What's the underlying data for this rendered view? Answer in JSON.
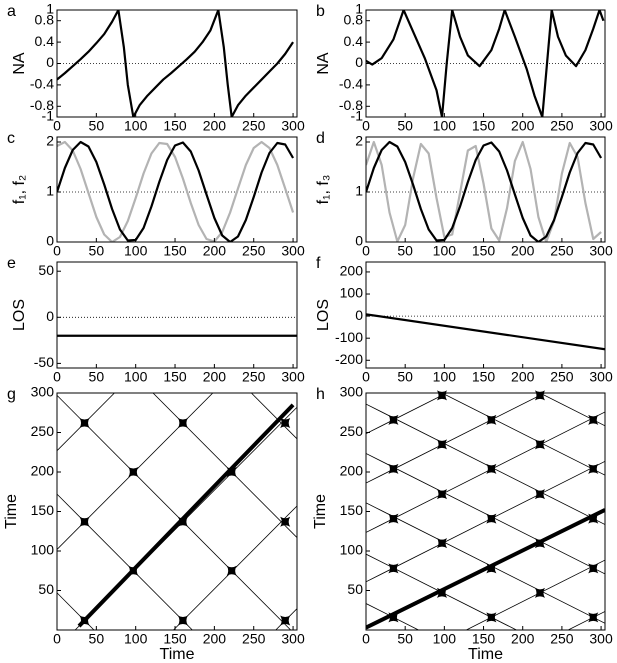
{
  "chart_data": [
    {
      "type": "line",
      "label": "a",
      "ylabel": "NA",
      "xlim": [
        0,
        305
      ],
      "ylim": [
        -1,
        1
      ],
      "xticks": [
        0,
        50,
        100,
        150,
        200,
        250,
        300
      ],
      "yticks": [
        -1,
        -0.8,
        -0.4,
        0,
        0.4,
        0.8,
        1
      ],
      "hline": 0,
      "x": [
        0,
        10,
        20,
        30,
        40,
        50,
        60,
        70,
        78,
        85,
        90,
        97,
        105,
        115,
        125,
        135,
        145,
        155,
        165,
        175,
        185,
        195,
        205,
        212,
        217,
        222,
        230,
        240,
        250,
        260,
        270,
        280,
        290,
        300
      ],
      "series": [
        {
          "color": "#000000",
          "values": [
            -0.3,
            -0.18,
            -0.05,
            0.08,
            0.22,
            0.38,
            0.55,
            0.78,
            1,
            0.3,
            -0.4,
            -1,
            -0.78,
            -0.6,
            -0.45,
            -0.3,
            -0.18,
            -0.05,
            0.08,
            0.22,
            0.4,
            0.62,
            1,
            0.3,
            -0.4,
            -1,
            -0.78,
            -0.6,
            -0.45,
            -0.3,
            -0.15,
            0,
            0.18,
            0.4
          ]
        }
      ]
    },
    {
      "type": "line",
      "label": "b",
      "ylabel": "NA",
      "xlim": [
        0,
        305
      ],
      "ylim": [
        -1,
        1
      ],
      "xticks": [
        0,
        50,
        100,
        150,
        200,
        250,
        300
      ],
      "yticks": [
        -1,
        -0.8,
        -0.4,
        0,
        0.4,
        0.8,
        1
      ],
      "hline": 0,
      "x": [
        0,
        8,
        20,
        35,
        48,
        60,
        75,
        90,
        97,
        103,
        110,
        120,
        130,
        145,
        160,
        170,
        177,
        190,
        205,
        215,
        225,
        231,
        237,
        245,
        255,
        268,
        280,
        290,
        298,
        303
      ],
      "series": [
        {
          "color": "#000000",
          "values": [
            0.05,
            -0.02,
            0.1,
            0.45,
            1,
            0.6,
            0.1,
            -0.5,
            -1,
            0,
            1,
            0.5,
            0.15,
            -0.05,
            0.25,
            0.65,
            1,
            0.5,
            -0.1,
            -0.6,
            -1,
            0,
            1,
            0.5,
            0.15,
            -0.05,
            0.25,
            0.65,
            1,
            0.8
          ]
        }
      ]
    },
    {
      "type": "line",
      "label": "c",
      "ylabel": "f₁, f₂",
      "xlim": [
        0,
        305
      ],
      "ylim": [
        0,
        2.1
      ],
      "xticks": [
        0,
        50,
        100,
        150,
        200,
        250,
        300
      ],
      "yticks": [
        0,
        1,
        2
      ],
      "hline": 1,
      "x": [
        0,
        10,
        20,
        30,
        40,
        50,
        60,
        70,
        80,
        90,
        100,
        110,
        120,
        130,
        140,
        150,
        160,
        170,
        180,
        190,
        200,
        210,
        220,
        230,
        240,
        250,
        260,
        270,
        280,
        290,
        300
      ],
      "series": [
        {
          "color": "#b3b3b3",
          "values": [
            1.92,
            2.0,
            1.83,
            1.46,
            0.98,
            0.5,
            0.15,
            0.0,
            0.1,
            0.42,
            0.88,
            1.37,
            1.77,
            1.98,
            1.96,
            1.7,
            1.27,
            0.78,
            0.34,
            0.06,
            0.01,
            0.2,
            0.59,
            1.07,
            1.54,
            1.88,
            2.0,
            1.88,
            1.54,
            1.07,
            0.59
          ]
        },
        {
          "color": "#000000",
          "values": [
            1.0,
            1.48,
            1.84,
            2.0,
            1.91,
            1.6,
            1.15,
            0.66,
            0.25,
            0.03,
            0.04,
            0.28,
            0.71,
            1.2,
            1.64,
            1.93,
            1.99,
            1.81,
            1.43,
            0.95,
            0.48,
            0.13,
            0.0,
            0.11,
            0.44,
            0.9,
            1.39,
            1.78,
            1.98,
            1.95,
            1.68
          ]
        }
      ]
    },
    {
      "type": "line",
      "label": "d",
      "ylabel": "f₁, f₃",
      "xlim": [
        0,
        305
      ],
      "ylim": [
        0,
        2.1
      ],
      "xticks": [
        0,
        50,
        100,
        150,
        200,
        250,
        300
      ],
      "yticks": [
        0,
        1,
        2
      ],
      "hline": 1,
      "x": [
        0,
        10,
        20,
        30,
        40,
        50,
        60,
        70,
        80,
        90,
        100,
        110,
        120,
        130,
        140,
        150,
        160,
        170,
        180,
        190,
        200,
        210,
        220,
        230,
        240,
        250,
        260,
        270,
        280,
        290,
        300
      ],
      "series": [
        {
          "color": "#b3b3b3",
          "values": [
            1.54,
            2.0,
            1.54,
            0.59,
            0.01,
            0.34,
            1.27,
            1.96,
            1.77,
            0.88,
            0.1,
            0.15,
            0.98,
            1.83,
            1.92,
            1.17,
            0.27,
            0.03,
            0.68,
            1.62,
            2.0,
            1.46,
            0.5,
            0.0,
            0.42,
            1.37,
            1.98,
            1.7,
            0.78,
            0.06,
            0.2
          ]
        },
        {
          "color": "#000000",
          "values": [
            1.0,
            1.48,
            1.84,
            2.0,
            1.91,
            1.6,
            1.15,
            0.66,
            0.25,
            0.03,
            0.04,
            0.28,
            0.71,
            1.2,
            1.64,
            1.93,
            1.99,
            1.81,
            1.43,
            0.95,
            0.48,
            0.13,
            0.0,
            0.11,
            0.44,
            0.9,
            1.39,
            1.78,
            1.98,
            1.95,
            1.68
          ]
        }
      ]
    },
    {
      "type": "line",
      "label": "e",
      "ylabel": "LOS",
      "xlim": [
        0,
        305
      ],
      "ylim": [
        -55,
        60
      ],
      "xticks": [
        0,
        50,
        100,
        150,
        200,
        250,
        300
      ],
      "yticks": [
        -50,
        0,
        50
      ],
      "hline": 0,
      "x": [
        0,
        305
      ],
      "series": [
        {
          "color": "#000000",
          "values": [
            -20,
            -20
          ]
        }
      ]
    },
    {
      "type": "line",
      "label": "f",
      "ylabel": "LOS",
      "xlim": [
        0,
        305
      ],
      "ylim": [
        -235,
        245
      ],
      "xticks": [
        0,
        50,
        100,
        150,
        200,
        250,
        300
      ],
      "yticks": [
        -200,
        -100,
        0,
        100,
        200
      ],
      "hline": 0,
      "x": [
        0,
        305
      ],
      "series": [
        {
          "color": "#000000",
          "values": [
            8,
            -150
          ]
        }
      ]
    },
    {
      "type": "trajectory",
      "label": "g",
      "xlabel": "Time",
      "ylabel": "Time",
      "xlim": [
        0,
        305
      ],
      "ylim": [
        0,
        300
      ],
      "xticks": [
        0,
        50,
        100,
        150,
        200,
        250,
        300
      ],
      "yticks": [
        50,
        100,
        150,
        200,
        250,
        300
      ],
      "series": [
        {
          "color": "#000000",
          "width": 0.8,
          "x": [
            0,
            73
          ],
          "values": [
            227,
            300
          ]
        },
        {
          "color": "#000000",
          "width": 0.8,
          "x": [
            0,
            198
          ],
          "values": [
            102,
            300
          ]
        },
        {
          "color": "#000000",
          "width": 0.8,
          "x": [
            23,
            305
          ],
          "values": [
            0,
            282
          ]
        },
        {
          "color": "#000000",
          "width": 0.8,
          "x": [
            148,
            305
          ],
          "values": [
            0,
            157
          ]
        },
        {
          "color": "#000000",
          "width": 0.8,
          "x": [
            278,
            305
          ],
          "values": [
            0,
            27
          ]
        },
        {
          "color": "#000000",
          "width": 0.8,
          "x": [
            0,
            47
          ],
          "values": [
            47,
            0
          ]
        },
        {
          "color": "#000000",
          "width": 0.8,
          "x": [
            0,
            172
          ],
          "values": [
            172,
            0
          ]
        },
        {
          "color": "#000000",
          "width": 0.8,
          "x": [
            0,
            297
          ],
          "values": [
            297,
            0
          ]
        },
        {
          "color": "#000000",
          "width": 0.8,
          "x": [
            122,
            305
          ],
          "values": [
            300,
            117
          ]
        },
        {
          "color": "#000000",
          "width": 0.8,
          "x": [
            247,
            305
          ],
          "values": [
            300,
            242
          ]
        },
        {
          "color": "#000000",
          "width": 4,
          "x": [
            28,
            300
          ],
          "values": [
            5,
            285
          ]
        }
      ],
      "points": {
        "x": [
          35,
          160,
          290,
          97,
          222,
          35,
          160,
          290,
          97,
          222,
          35,
          160,
          290
        ],
        "y": [
          12,
          12,
          12,
          75,
          75,
          137,
          137,
          137,
          200,
          200,
          262,
          262,
          262
        ]
      }
    },
    {
      "type": "trajectory",
      "label": "h",
      "xlabel": "Time",
      "ylabel": "Time",
      "xlim": [
        0,
        305
      ],
      "ylim": [
        0,
        300
      ],
      "xticks": [
        0,
        50,
        100,
        150,
        200,
        250,
        300
      ],
      "yticks": [
        50,
        100,
        150,
        200,
        250,
        300
      ],
      "series": [
        {
          "color": "#000000",
          "width": 0.8,
          "x": [
            0,
            103
          ],
          "values": [
            248.5,
            300
          ]
        },
        {
          "color": "#000000",
          "width": 0.8,
          "x": [
            0,
            228
          ],
          "values": [
            186,
            300
          ]
        },
        {
          "color": "#000000",
          "width": 0.8,
          "x": [
            0,
            305
          ],
          "values": [
            123.5,
            276
          ]
        },
        {
          "color": "#000000",
          "width": 0.8,
          "x": [
            0,
            305
          ],
          "values": [
            61,
            213.5
          ]
        },
        {
          "color": "#000000",
          "width": 0.8,
          "x": [
            128,
            305
          ],
          "values": [
            0,
            88.5
          ]
        },
        {
          "color": "#000000",
          "width": 0.8,
          "x": [
            258,
            305
          ],
          "values": [
            0,
            23.5
          ]
        },
        {
          "color": "#000000",
          "width": 0.8,
          "x": [
            0,
            67
          ],
          "values": [
            33.5,
            0
          ]
        },
        {
          "color": "#000000",
          "width": 0.8,
          "x": [
            0,
            192
          ],
          "values": [
            96,
            0
          ]
        },
        {
          "color": "#000000",
          "width": 0.8,
          "x": [
            0,
            305
          ],
          "values": [
            161,
            8.5
          ]
        },
        {
          "color": "#000000",
          "width": 0.8,
          "x": [
            0,
            305
          ],
          "values": [
            223.5,
            71
          ]
        },
        {
          "color": "#000000",
          "width": 0.8,
          "x": [
            0,
            305
          ],
          "values": [
            286,
            133.5
          ]
        },
        {
          "color": "#000000",
          "width": 0.8,
          "x": [
            97,
            305
          ],
          "values": [
            300,
            196
          ]
        },
        {
          "color": "#000000",
          "width": 0.8,
          "x": [
            222,
            305
          ],
          "values": [
            300,
            258.5
          ]
        },
        {
          "color": "#000000",
          "width": 4,
          "x": [
            0,
            305
          ],
          "values": [
            3,
            152
          ]
        }
      ],
      "points": {
        "x": [
          35,
          160,
          290,
          97,
          222,
          35,
          160,
          290,
          97,
          222,
          35,
          160,
          290,
          97,
          222,
          35,
          160,
          290,
          97,
          222,
          35,
          160,
          290,
          97,
          222
        ],
        "y": [
          16,
          16,
          16,
          47,
          47,
          78,
          78,
          78,
          110,
          110,
          141,
          141,
          141,
          172,
          172,
          204,
          204,
          204,
          235,
          235,
          266,
          266,
          266,
          297,
          297
        ]
      }
    }
  ]
}
